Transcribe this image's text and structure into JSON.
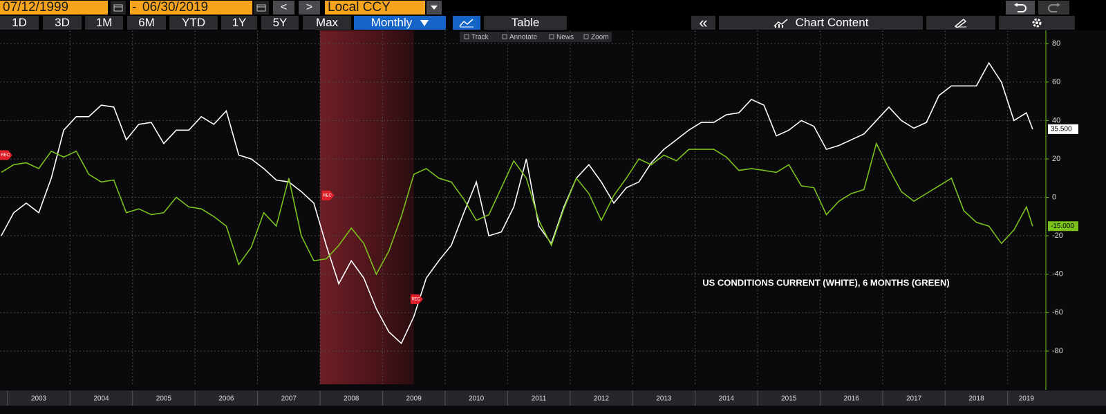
{
  "toolbar": {
    "start_date": "07/12/1999",
    "separator": "-",
    "end_date": "06/30/2019",
    "prev": "<",
    "next": ">",
    "currency": "Local CCY",
    "periods": [
      "1D",
      "3D",
      "1M",
      "6M",
      "YTD",
      "1Y",
      "5Y",
      "Max"
    ],
    "frequency": "Monthly",
    "table": "Table",
    "collapse": "«",
    "chart_content": "Chart Content",
    "tools": [
      "Track",
      "Annotate",
      "News",
      "Zoom"
    ]
  },
  "chart_data": {
    "type": "line",
    "annotation": "US CONDITIONS CURRENT (WHITE), 6 MONTHS (GREEN)",
    "x": [
      2002.9,
      2003.1,
      2003.3,
      2003.5,
      2003.7,
      2003.9,
      2004.1,
      2004.3,
      2004.5,
      2004.7,
      2004.9,
      2005.1,
      2005.3,
      2005.5,
      2005.7,
      2005.9,
      2006.1,
      2006.3,
      2006.5,
      2006.7,
      2006.9,
      2007.1,
      2007.3,
      2007.5,
      2007.7,
      2007.9,
      2008.1,
      2008.3,
      2008.5,
      2008.7,
      2008.9,
      2009.1,
      2009.3,
      2009.5,
      2009.7,
      2009.9,
      2010.1,
      2010.3,
      2010.5,
      2010.7,
      2010.9,
      2011.1,
      2011.3,
      2011.5,
      2011.7,
      2011.9,
      2012.1,
      2012.3,
      2012.5,
      2012.7,
      2012.9,
      2013.1,
      2013.3,
      2013.5,
      2013.7,
      2013.9,
      2014.1,
      2014.3,
      2014.5,
      2014.7,
      2014.9,
      2015.1,
      2015.3,
      2015.5,
      2015.7,
      2015.9,
      2016.1,
      2016.3,
      2016.5,
      2016.7,
      2016.9,
      2017.1,
      2017.3,
      2017.5,
      2017.7,
      2017.9,
      2018.1,
      2018.3,
      2018.5,
      2018.7,
      2018.9,
      2019.1,
      2019.3,
      2019.4
    ],
    "series": [
      {
        "name": "Current",
        "color": "#ffffff",
        "last_value_label": "35.500",
        "values": [
          -20,
          -8,
          -3,
          -8,
          10,
          35,
          42,
          42,
          48,
          47,
          30,
          38,
          39,
          28,
          35,
          35,
          42,
          38,
          45,
          22,
          20,
          15,
          9,
          8,
          3,
          -3,
          -25,
          -45,
          -33,
          -42,
          -58,
          -70,
          -76,
          -62,
          -42,
          -33,
          -25,
          -8,
          8,
          -20,
          -18,
          -5,
          20,
          -15,
          -24,
          -5,
          10,
          17,
          8,
          -3,
          5,
          8,
          18,
          25,
          30,
          35,
          39,
          39,
          43,
          44,
          51,
          48,
          32,
          35,
          40,
          37,
          25,
          27,
          30,
          33,
          40,
          47,
          40,
          36,
          39,
          53,
          58,
          58,
          58,
          70,
          60,
          40,
          44,
          35.5
        ]
      },
      {
        "name": "6 Months",
        "color": "#7cc21c",
        "last_value_label": "-15.000",
        "values": [
          13,
          17,
          18,
          15,
          24,
          21,
          24,
          12,
          8,
          9,
          -8,
          -6,
          -9,
          -8,
          0,
          -5,
          -6,
          -10,
          -15,
          -35,
          -26,
          -8,
          -15,
          10,
          -20,
          -33,
          -32,
          -25,
          -16,
          -24,
          -40,
          -28,
          -10,
          12,
          15,
          10,
          8,
          -1,
          -12,
          -9,
          5,
          19,
          10,
          -12,
          -25,
          -6,
          10,
          2,
          -12,
          1,
          10,
          20,
          17,
          22,
          19,
          25,
          25,
          25,
          21,
          14,
          15,
          14,
          13,
          17,
          6,
          5,
          -9,
          -2,
          2,
          4,
          28,
          15,
          3,
          -2,
          2,
          6,
          10,
          -7,
          -13,
          -15,
          -24,
          -17,
          -5,
          -15
        ]
      }
    ],
    "recession": [
      2008.0,
      2009.5
    ],
    "flags": [
      {
        "label": "REC",
        "x": 2002.9,
        "y": 22
      },
      {
        "label": "REC",
        "x": 2008.05,
        "y": 1
      },
      {
        "label": "REC",
        "x": 2009.47,
        "y": -53
      }
    ],
    "xlim": [
      2002.88,
      2019.6
    ],
    "xticks": [
      2003,
      2004,
      2005,
      2006,
      2007,
      2008,
      2009,
      2010,
      2011,
      2012,
      2013,
      2014,
      2015,
      2016,
      2017,
      2018,
      2019
    ],
    "ylim": [
      -97.3,
      86.9
    ],
    "yticks": [
      -80,
      -60,
      -40,
      -20,
      0,
      20,
      40,
      60,
      80
    ],
    "grid": true,
    "y_axis_side": "right"
  }
}
